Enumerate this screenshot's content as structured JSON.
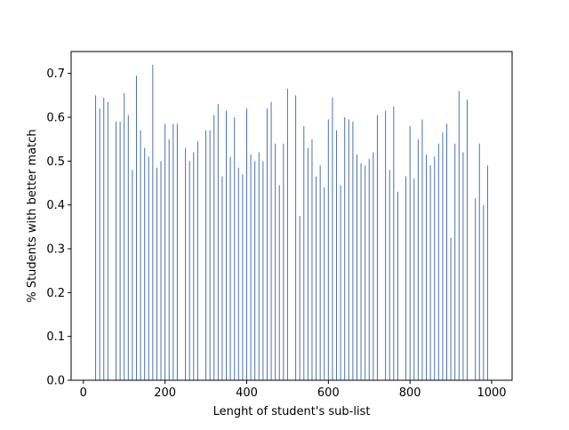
{
  "chart_data": {
    "type": "bar",
    "title": "",
    "xlabel": "Lenght of student's sub-list",
    "ylabel": "% Students with better match",
    "xlim": [
      -30,
      1050
    ],
    "ylim": [
      0,
      0.75
    ],
    "xticks": [
      0,
      200,
      400,
      600,
      800,
      1000
    ],
    "yticks": [
      0.0,
      0.1,
      0.2,
      0.3,
      0.4,
      0.5,
      0.6,
      0.7
    ],
    "xtick_labels": [
      "0",
      "200",
      "400",
      "600",
      "800",
      "1000"
    ],
    "ytick_labels": [
      "0.0",
      "0.1",
      "0.2",
      "0.3",
      "0.4",
      "0.5",
      "0.6",
      "0.7"
    ],
    "bar_color": "#4c72b0",
    "grid": false,
    "x": [
      30,
      40,
      50,
      60,
      70,
      80,
      90,
      100,
      110,
      120,
      130,
      140,
      150,
      160,
      170,
      180,
      190,
      200,
      210,
      220,
      230,
      240,
      250,
      260,
      270,
      280,
      290,
      300,
      310,
      320,
      330,
      340,
      350,
      360,
      370,
      380,
      390,
      400,
      410,
      420,
      430,
      440,
      450,
      460,
      470,
      480,
      490,
      500,
      510,
      520,
      530,
      540,
      550,
      560,
      570,
      580,
      590,
      600,
      610,
      620,
      630,
      640,
      650,
      660,
      670,
      680,
      690,
      700,
      710,
      720,
      730,
      740,
      750,
      760,
      770,
      780,
      790,
      800,
      810,
      820,
      830,
      840,
      850,
      860,
      870,
      880,
      890,
      900,
      910,
      920,
      930,
      940,
      950,
      960,
      970,
      980,
      990
    ],
    "values": [
      0.65,
      0.62,
      0.645,
      0.635,
      0.0,
      0.59,
      0.59,
      0.655,
      0.605,
      0.48,
      0.695,
      0.57,
      0.53,
      0.51,
      0.72,
      0.485,
      0.5,
      0.585,
      0.55,
      0.585,
      0.585,
      0.0,
      0.53,
      0.5,
      0.52,
      0.545,
      0.0,
      0.57,
      0.57,
      0.605,
      0.63,
      0.465,
      0.615,
      0.51,
      0.6,
      0.485,
      0.47,
      0.62,
      0.515,
      0.5,
      0.52,
      0.5,
      0.62,
      0.635,
      0.54,
      0.445,
      0.54,
      0.665,
      0.0,
      0.65,
      0.375,
      0.58,
      0.53,
      0.55,
      0.465,
      0.49,
      0.44,
      0.595,
      0.645,
      0.57,
      0.445,
      0.6,
      0.595,
      0.59,
      0.515,
      0.495,
      0.49,
      0.505,
      0.52,
      0.605,
      0.0,
      0.615,
      0.48,
      0.625,
      0.43,
      0.0,
      0.465,
      0.58,
      0.46,
      0.55,
      0.595,
      0.515,
      0.49,
      0.51,
      0.54,
      0.565,
      0.585,
      0.325,
      0.54,
      0.66,
      0.52,
      0.64,
      0.0,
      0.415,
      0.54,
      0.4,
      0.49
    ]
  }
}
